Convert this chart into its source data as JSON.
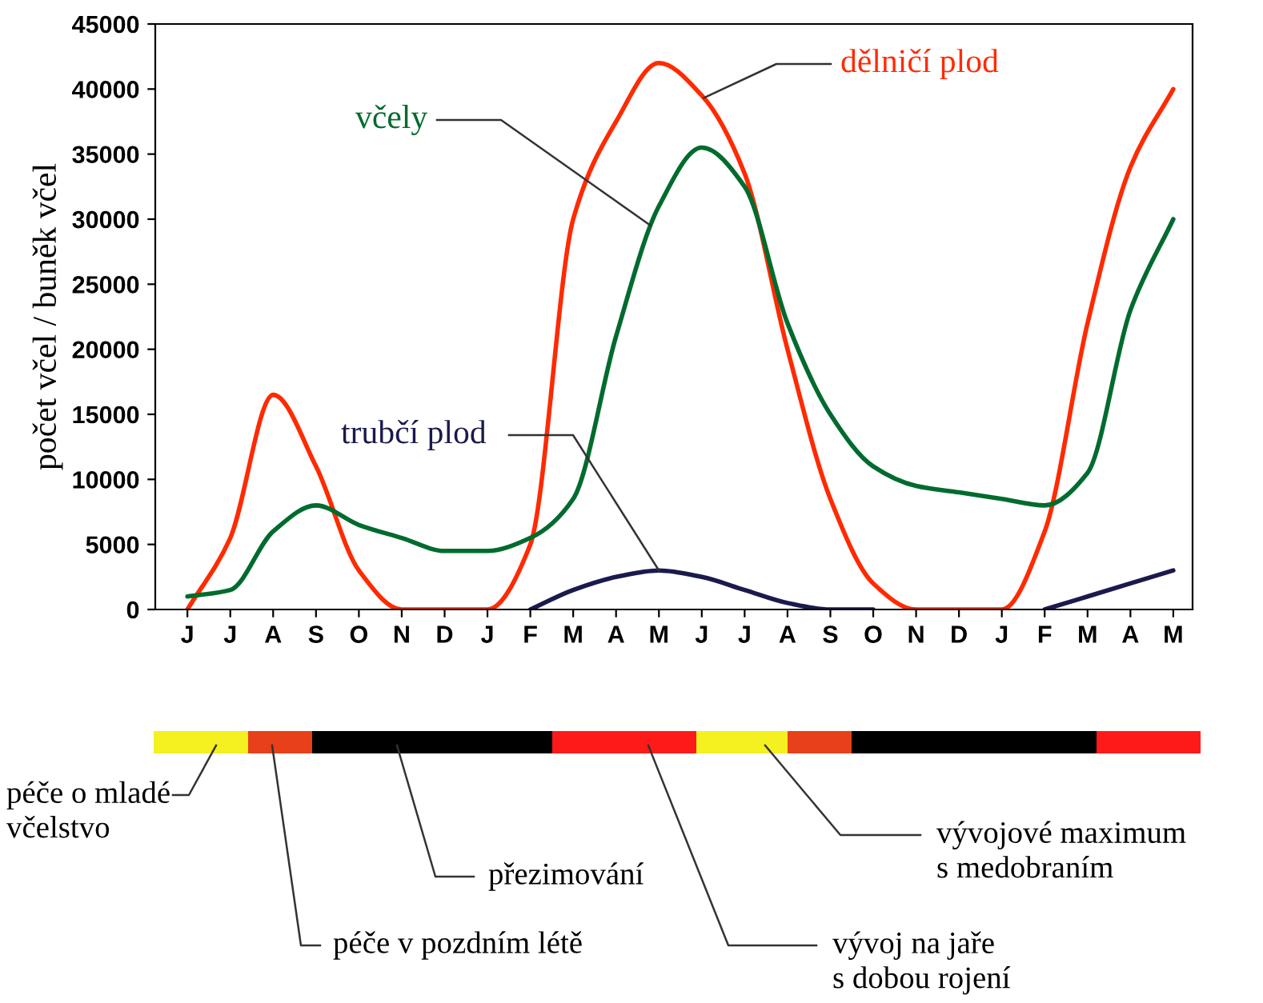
{
  "chart_data": [
    {
      "type": "line",
      "ylabel": "počet včel / buněk včel",
      "ylim": [
        0,
        45000
      ],
      "yticks": [
        0,
        5000,
        10000,
        15000,
        20000,
        25000,
        30000,
        35000,
        40000,
        45000
      ],
      "categories": [
        "J",
        "J",
        "A",
        "S",
        "O",
        "N",
        "D",
        "J",
        "F",
        "M",
        "A",
        "M",
        "J",
        "J",
        "A",
        "S",
        "O",
        "N",
        "D",
        "J",
        "F",
        "M",
        "A",
        "M"
      ],
      "grid": false,
      "legend": false,
      "marker": "none",
      "line_style": "solid",
      "series": [
        {
          "name": "dělničí plod",
          "color": "#ff2a00",
          "values": [
            0,
            5500,
            16500,
            11000,
            3000,
            0,
            0,
            0,
            5000,
            30000,
            37500,
            42000,
            39500,
            33500,
            20000,
            8500,
            2000,
            0,
            0,
            0,
            6000,
            22000,
            34000,
            40000
          ]
        },
        {
          "name": "včely",
          "color": "#006b2e",
          "values": [
            1000,
            1500,
            6000,
            8000,
            6500,
            5500,
            4500,
            4500,
            5500,
            8500,
            21000,
            31000,
            35500,
            32500,
            22000,
            15000,
            11000,
            9500,
            9000,
            8500,
            8000,
            10500,
            23000,
            30000
          ]
        },
        {
          "name": "trubčí plod",
          "color": "#1a1a4e",
          "values": [
            null,
            null,
            null,
            null,
            null,
            null,
            null,
            null,
            0,
            1500,
            2500,
            3000,
            2500,
            1500,
            500,
            0,
            0,
            null,
            null,
            null,
            0,
            1000,
            2000,
            3000
          ]
        }
      ]
    },
    {
      "type": "other",
      "annotations": [
        "péče o mladé včelstvo",
        "péče v pozdním létě",
        "přezimování",
        "vývoj na jaře s dobou rojení",
        "vývojové maximum s medobraním"
      ]
    }
  ]
}
